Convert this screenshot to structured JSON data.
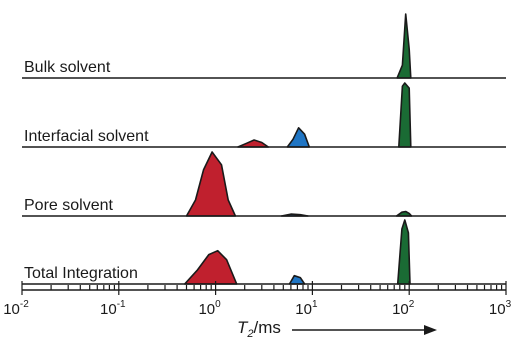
{
  "chart_data": {
    "type": "area",
    "title": "",
    "xlabel_main": "T",
    "xlabel_sub": "2",
    "xlabel_unit": "/ms",
    "xscale": "log",
    "xlim": [
      0.01,
      1000
    ],
    "ticks": [
      {
        "value": 0.01,
        "base": "10",
        "exp": "-2"
      },
      {
        "value": 0.1,
        "base": "10",
        "exp": "-1"
      },
      {
        "value": 1,
        "base": "10",
        "exp": "0"
      },
      {
        "value": 10,
        "base": "10",
        "exp": "1"
      },
      {
        "value": 100,
        "base": "10",
        "exp": "2"
      },
      {
        "value": 1000,
        "base": "10",
        "exp": "3"
      }
    ],
    "ylabel": "",
    "grid": false,
    "arrow": true,
    "colors": {
      "red": "#c0202e",
      "blue": "#1f75c4",
      "green": "#1a6b34",
      "line": "#1a1a1a"
    },
    "panels": [
      {
        "label": "Bulk solvent",
        "peaks": [
          {
            "color": "green",
            "points": [
              [
                75,
                0
              ],
              [
                85,
                0.2
              ],
              [
                92,
                1.0
              ],
              [
                100,
                0.45
              ],
              [
                104,
                0
              ]
            ]
          }
        ]
      },
      {
        "label": "Interfacial solvent",
        "peaks": [
          {
            "color": "red",
            "points": [
              [
                1.7,
                0
              ],
              [
                2.1,
                0.06
              ],
              [
                2.5,
                0.11
              ],
              [
                3.0,
                0.07
              ],
              [
                3.5,
                0
              ]
            ]
          },
          {
            "color": "blue",
            "points": [
              [
                5.5,
                0
              ],
              [
                6.3,
                0.12
              ],
              [
                7.2,
                0.3
              ],
              [
                8.3,
                0.2
              ],
              [
                9.3,
                0
              ]
            ]
          },
          {
            "color": "green",
            "points": [
              [
                78,
                0
              ],
              [
                85,
                0.95
              ],
              [
                90,
                1.0
              ],
              [
                100,
                0.92
              ],
              [
                104,
                0
              ]
            ]
          }
        ]
      },
      {
        "label": "Pore solvent",
        "peaks": [
          {
            "color": "red",
            "points": [
              [
                0.5,
                0
              ],
              [
                0.62,
                0.25
              ],
              [
                0.75,
                0.72
              ],
              [
                0.92,
                1.0
              ],
              [
                1.15,
                0.8
              ],
              [
                1.35,
                0.25
              ],
              [
                1.6,
                0
              ]
            ]
          },
          {
            "color": "blue",
            "points": [
              [
                4.8,
                0
              ],
              [
                6.0,
                0.03
              ],
              [
                7.5,
                0.02
              ],
              [
                9.0,
                0
              ]
            ]
          },
          {
            "color": "green",
            "points": [
              [
                74,
                0
              ],
              [
                84,
                0.06
              ],
              [
                92,
                0.07
              ],
              [
                100,
                0.04
              ],
              [
                106,
                0
              ]
            ]
          }
        ]
      },
      {
        "label": "Total Integration",
        "peaks": [
          {
            "color": "red",
            "points": [
              [
                0.48,
                0
              ],
              [
                0.65,
                0.22
              ],
              [
                0.85,
                0.46
              ],
              [
                1.05,
                0.52
              ],
              [
                1.3,
                0.38
              ],
              [
                1.65,
                0
              ]
            ]
          },
          {
            "color": "blue",
            "points": [
              [
                5.8,
                0
              ],
              [
                6.5,
                0.13
              ],
              [
                7.5,
                0.1
              ],
              [
                8.3,
                0
              ]
            ]
          },
          {
            "color": "green",
            "points": [
              [
                76,
                0
              ],
              [
                84,
                0.86
              ],
              [
                90,
                1.0
              ],
              [
                98,
                0.8
              ],
              [
                102,
                0
              ]
            ]
          }
        ]
      }
    ]
  }
}
